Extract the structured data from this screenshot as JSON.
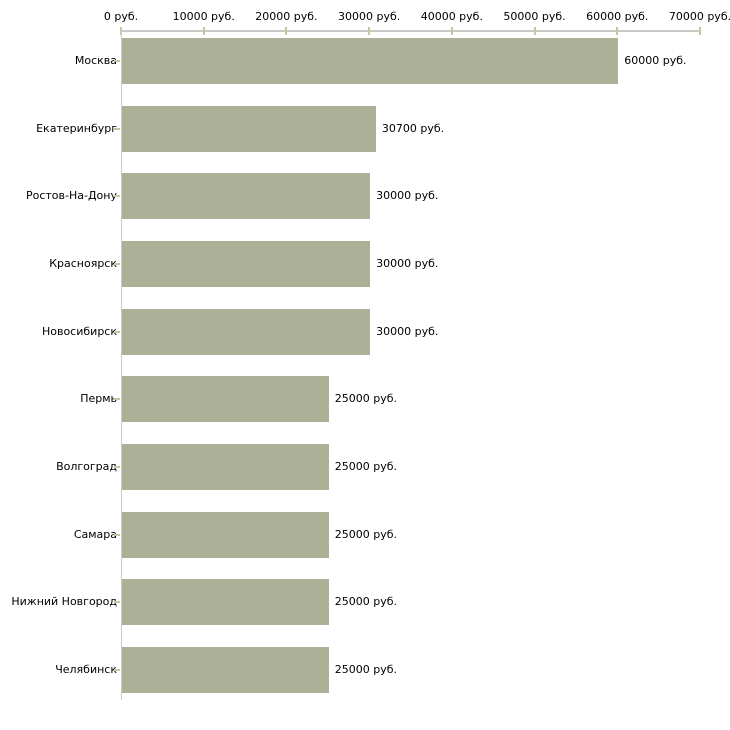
{
  "chart_data": {
    "type": "bar",
    "orientation": "horizontal",
    "title": "",
    "xlabel": "",
    "ylabel": "",
    "categories": [
      "Москва",
      "Екатеринбург",
      "Ростов-На-Дону",
      "Красноярск",
      "Новосибирск",
      "Пермь",
      "Волгоград",
      "Самара",
      "Нижний Новгород",
      "Челябинск"
    ],
    "values": [
      60000,
      30700,
      30000,
      30000,
      30000,
      25000,
      25000,
      25000,
      25000,
      25000
    ],
    "value_labels": [
      "60000 руб.",
      "30700 руб.",
      "30000 руб.",
      "30000 руб.",
      "30000 руб.",
      "25000 руб.",
      "25000 руб.",
      "25000 руб.",
      "25000 руб.",
      "25000 руб."
    ],
    "x_ticks": [
      0,
      10000,
      20000,
      30000,
      40000,
      50000,
      60000,
      70000
    ],
    "x_tick_labels": [
      "0 руб.",
      "10000 руб.",
      "20000 руб.",
      "30000 руб.",
      "40000 руб.",
      "50000 руб.",
      "60000 руб.",
      "70000 руб."
    ],
    "xlim": [
      0,
      70000
    ],
    "grid": false,
    "legend": false,
    "unit_suffix": " руб.",
    "colors": {
      "bar": "#abb096",
      "axis_line": "#c9c9c9",
      "tick_mark": "#c5c89f",
      "text": "#000000",
      "background": "#ffffff"
    }
  }
}
